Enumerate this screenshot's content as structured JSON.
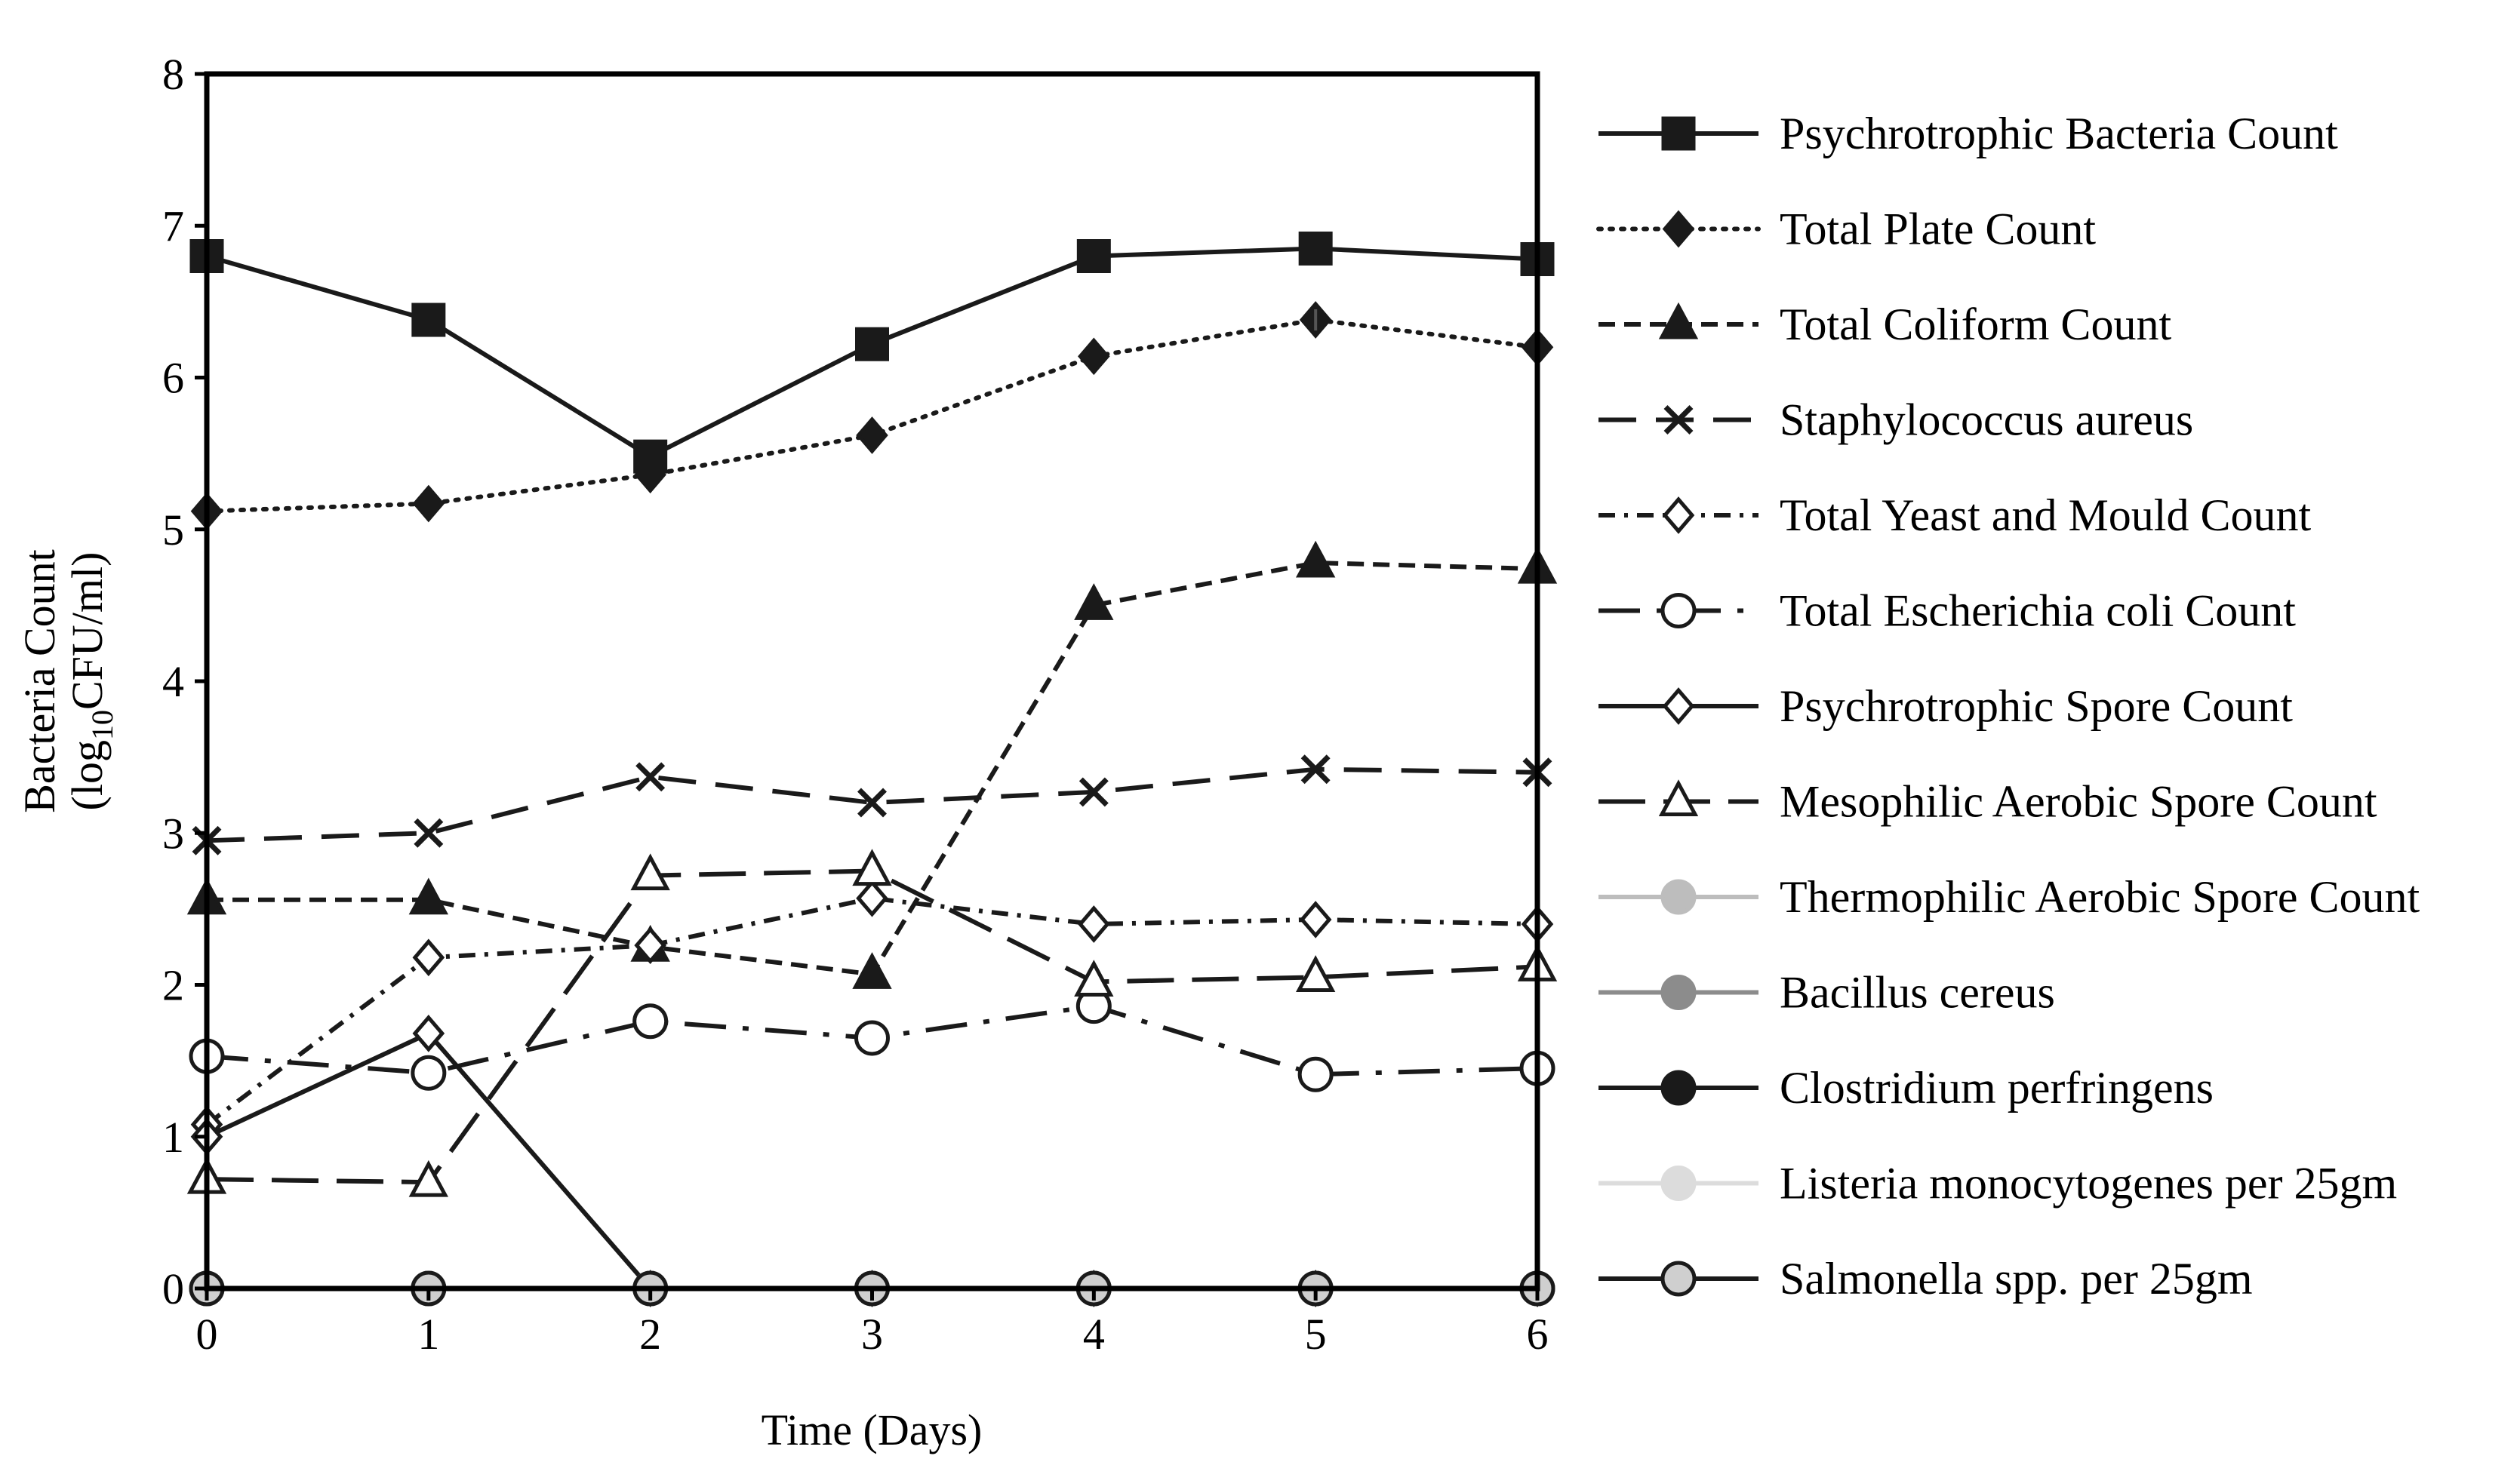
{
  "chart_data": {
    "type": "line",
    "title": "",
    "xlabel": "Time (Days)",
    "ylabel": "Bacteria Count",
    "ylabel_line2": {
      "prefix": "(log",
      "subscript": "10",
      "suffix": "CFU/ml)"
    },
    "x": [
      0,
      1,
      2,
      3,
      4,
      5,
      6
    ],
    "xticks": [
      "0",
      "1",
      "2",
      "3",
      "4",
      "5",
      "6"
    ],
    "yticks": [
      "0",
      "1",
      "2",
      "3",
      "4",
      "5",
      "6",
      "7",
      "8"
    ],
    "xlim": [
      0,
      6
    ],
    "ylim": [
      0,
      8
    ],
    "grid": false,
    "legend_position": "right",
    "series": [
      {
        "name": "Psychrotrophic Bacteria Count",
        "values": [
          6.8,
          6.38,
          5.48,
          6.22,
          6.8,
          6.85,
          6.78
        ],
        "color": "#1a1a1a",
        "dash": "solid",
        "marker": "square",
        "fill": "#1a1a1a"
      },
      {
        "name": "Total Plate Count",
        "values": [
          5.12,
          5.17,
          5.36,
          5.62,
          6.14,
          6.38,
          6.2
        ],
        "color": "#1a1a1a",
        "dash": "dotted",
        "marker": "diamond",
        "fill": "#1a1a1a"
      },
      {
        "name": "Total Coliform Count",
        "values": [
          2.56,
          2.56,
          2.25,
          2.07,
          4.5,
          4.78,
          4.74
        ],
        "color": "#1a1a1a",
        "dash": "dashed",
        "marker": "triangle",
        "fill": "#1a1a1a"
      },
      {
        "name": "Staphylococcus aureus",
        "values": [
          2.95,
          3.0,
          3.37,
          3.2,
          3.27,
          3.42,
          3.4
        ],
        "color": "#1a1a1a",
        "dash": "longdash",
        "marker": "x",
        "fill": "none"
      },
      {
        "name": "Total Yeast and Mould Count",
        "values": [
          1.08,
          2.18,
          2.26,
          2.57,
          2.4,
          2.43,
          2.4
        ],
        "color": "#1a1a1a",
        "dash": "dashdot",
        "marker": "diamond",
        "fill": "#ffffff"
      },
      {
        "name": "Total Escherichia coli Count",
        "values": [
          1.53,
          1.42,
          1.76,
          1.65,
          1.86,
          1.41,
          1.45
        ],
        "color": "#1a1a1a",
        "dash": "longdashdot",
        "marker": "circle",
        "fill": "#ffffff"
      },
      {
        "name": "Psychrotrophic Spore Count",
        "values": [
          1.0,
          1.68,
          0,
          0,
          0,
          0,
          0
        ],
        "color": "#1a1a1a",
        "dash": "solid",
        "marker": "diamond",
        "fill": "#ffffff"
      },
      {
        "name": "Mesophilic Aerobic Spore Count",
        "values": [
          0.72,
          0.7,
          2.72,
          2.75,
          2.02,
          2.05,
          2.12
        ],
        "color": "#1a1a1a",
        "dash": "longdash2",
        "marker": "triangle",
        "fill": "#ffffff"
      },
      {
        "name": "Thermophilic Aerobic Spore Count",
        "values": [
          0,
          0,
          0,
          0,
          0,
          0,
          0
        ],
        "color": "#bdbdbd",
        "dash": "solid",
        "marker": "circle",
        "fill": "#bdbdbd"
      },
      {
        "name": "Bacillus cereus",
        "values": [
          0,
          0,
          0,
          0,
          0,
          0,
          0
        ],
        "color": "#8c8c8c",
        "dash": "solid",
        "marker": "circle",
        "fill": "#8c8c8c"
      },
      {
        "name": "Clostridium perfringens",
        "values": [
          0,
          0,
          0,
          0,
          0,
          0,
          0
        ],
        "color": "#1a1a1a",
        "dash": "solid",
        "marker": "circle",
        "fill": "#1a1a1a"
      },
      {
        "name": "Listeria monocytogenes per 25gm",
        "values": [
          0,
          0,
          0,
          0,
          0,
          0,
          0
        ],
        "color": "#dcdcdc",
        "dash": "solid",
        "marker": "circle",
        "fill": "#dcdcdc"
      },
      {
        "name": "Salmonella spp. per 25gm",
        "values": [
          0,
          0,
          0,
          0,
          0,
          0,
          0
        ],
        "color": "#1a1a1a",
        "dash": "solid",
        "marker": "circle",
        "fill": "#cfcfcf"
      }
    ]
  }
}
